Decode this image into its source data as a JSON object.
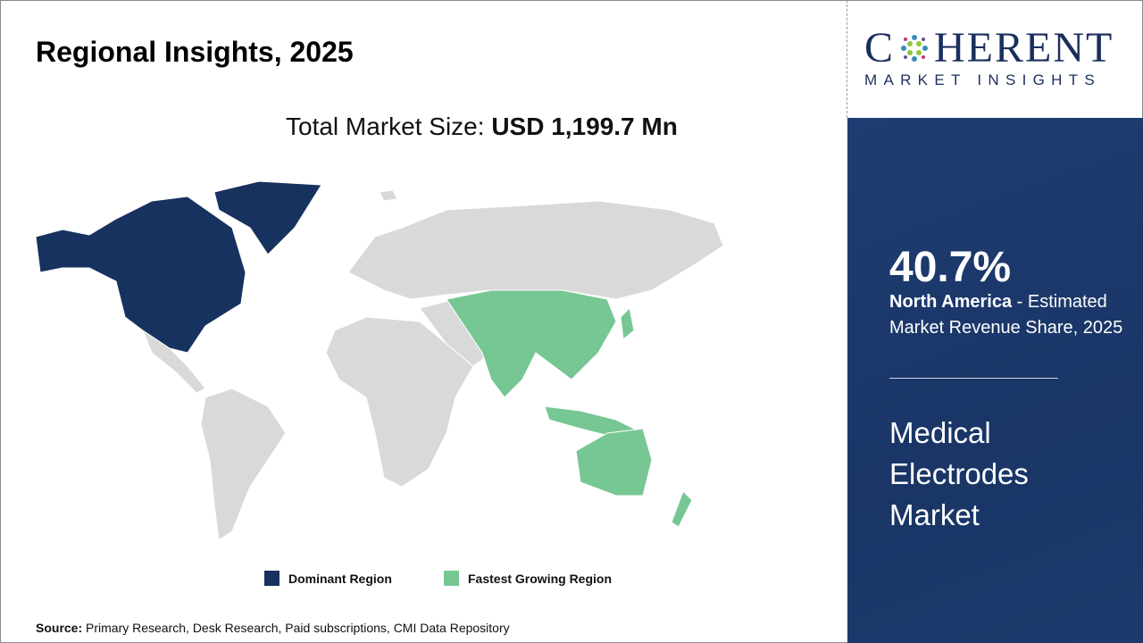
{
  "title": "Regional Insights, 2025",
  "total": {
    "label": "Total Market Size: ",
    "value": "USD 1,199.7 Mn"
  },
  "legend": [
    {
      "label": "Dominant Region",
      "color": "#17325f"
    },
    {
      "label": "Fastest Growing Region",
      "color": "#77c794"
    }
  ],
  "source": {
    "label": "Source:",
    "text": " Primary Research, Desk Research, Paid subscriptions, CMI Data Repository"
  },
  "logo": {
    "line1_a": "C",
    "line1_b": "HERENT",
    "line2": "MARKET INSIGHTS"
  },
  "panel": {
    "percent": "40.7%",
    "region": "North America",
    "desc": " - Estimated Market Revenue Share, 2025",
    "market": "Medical Electrodes Market"
  },
  "colors": {
    "other": "#d9d9d9",
    "panel": "#1c3a6c"
  }
}
